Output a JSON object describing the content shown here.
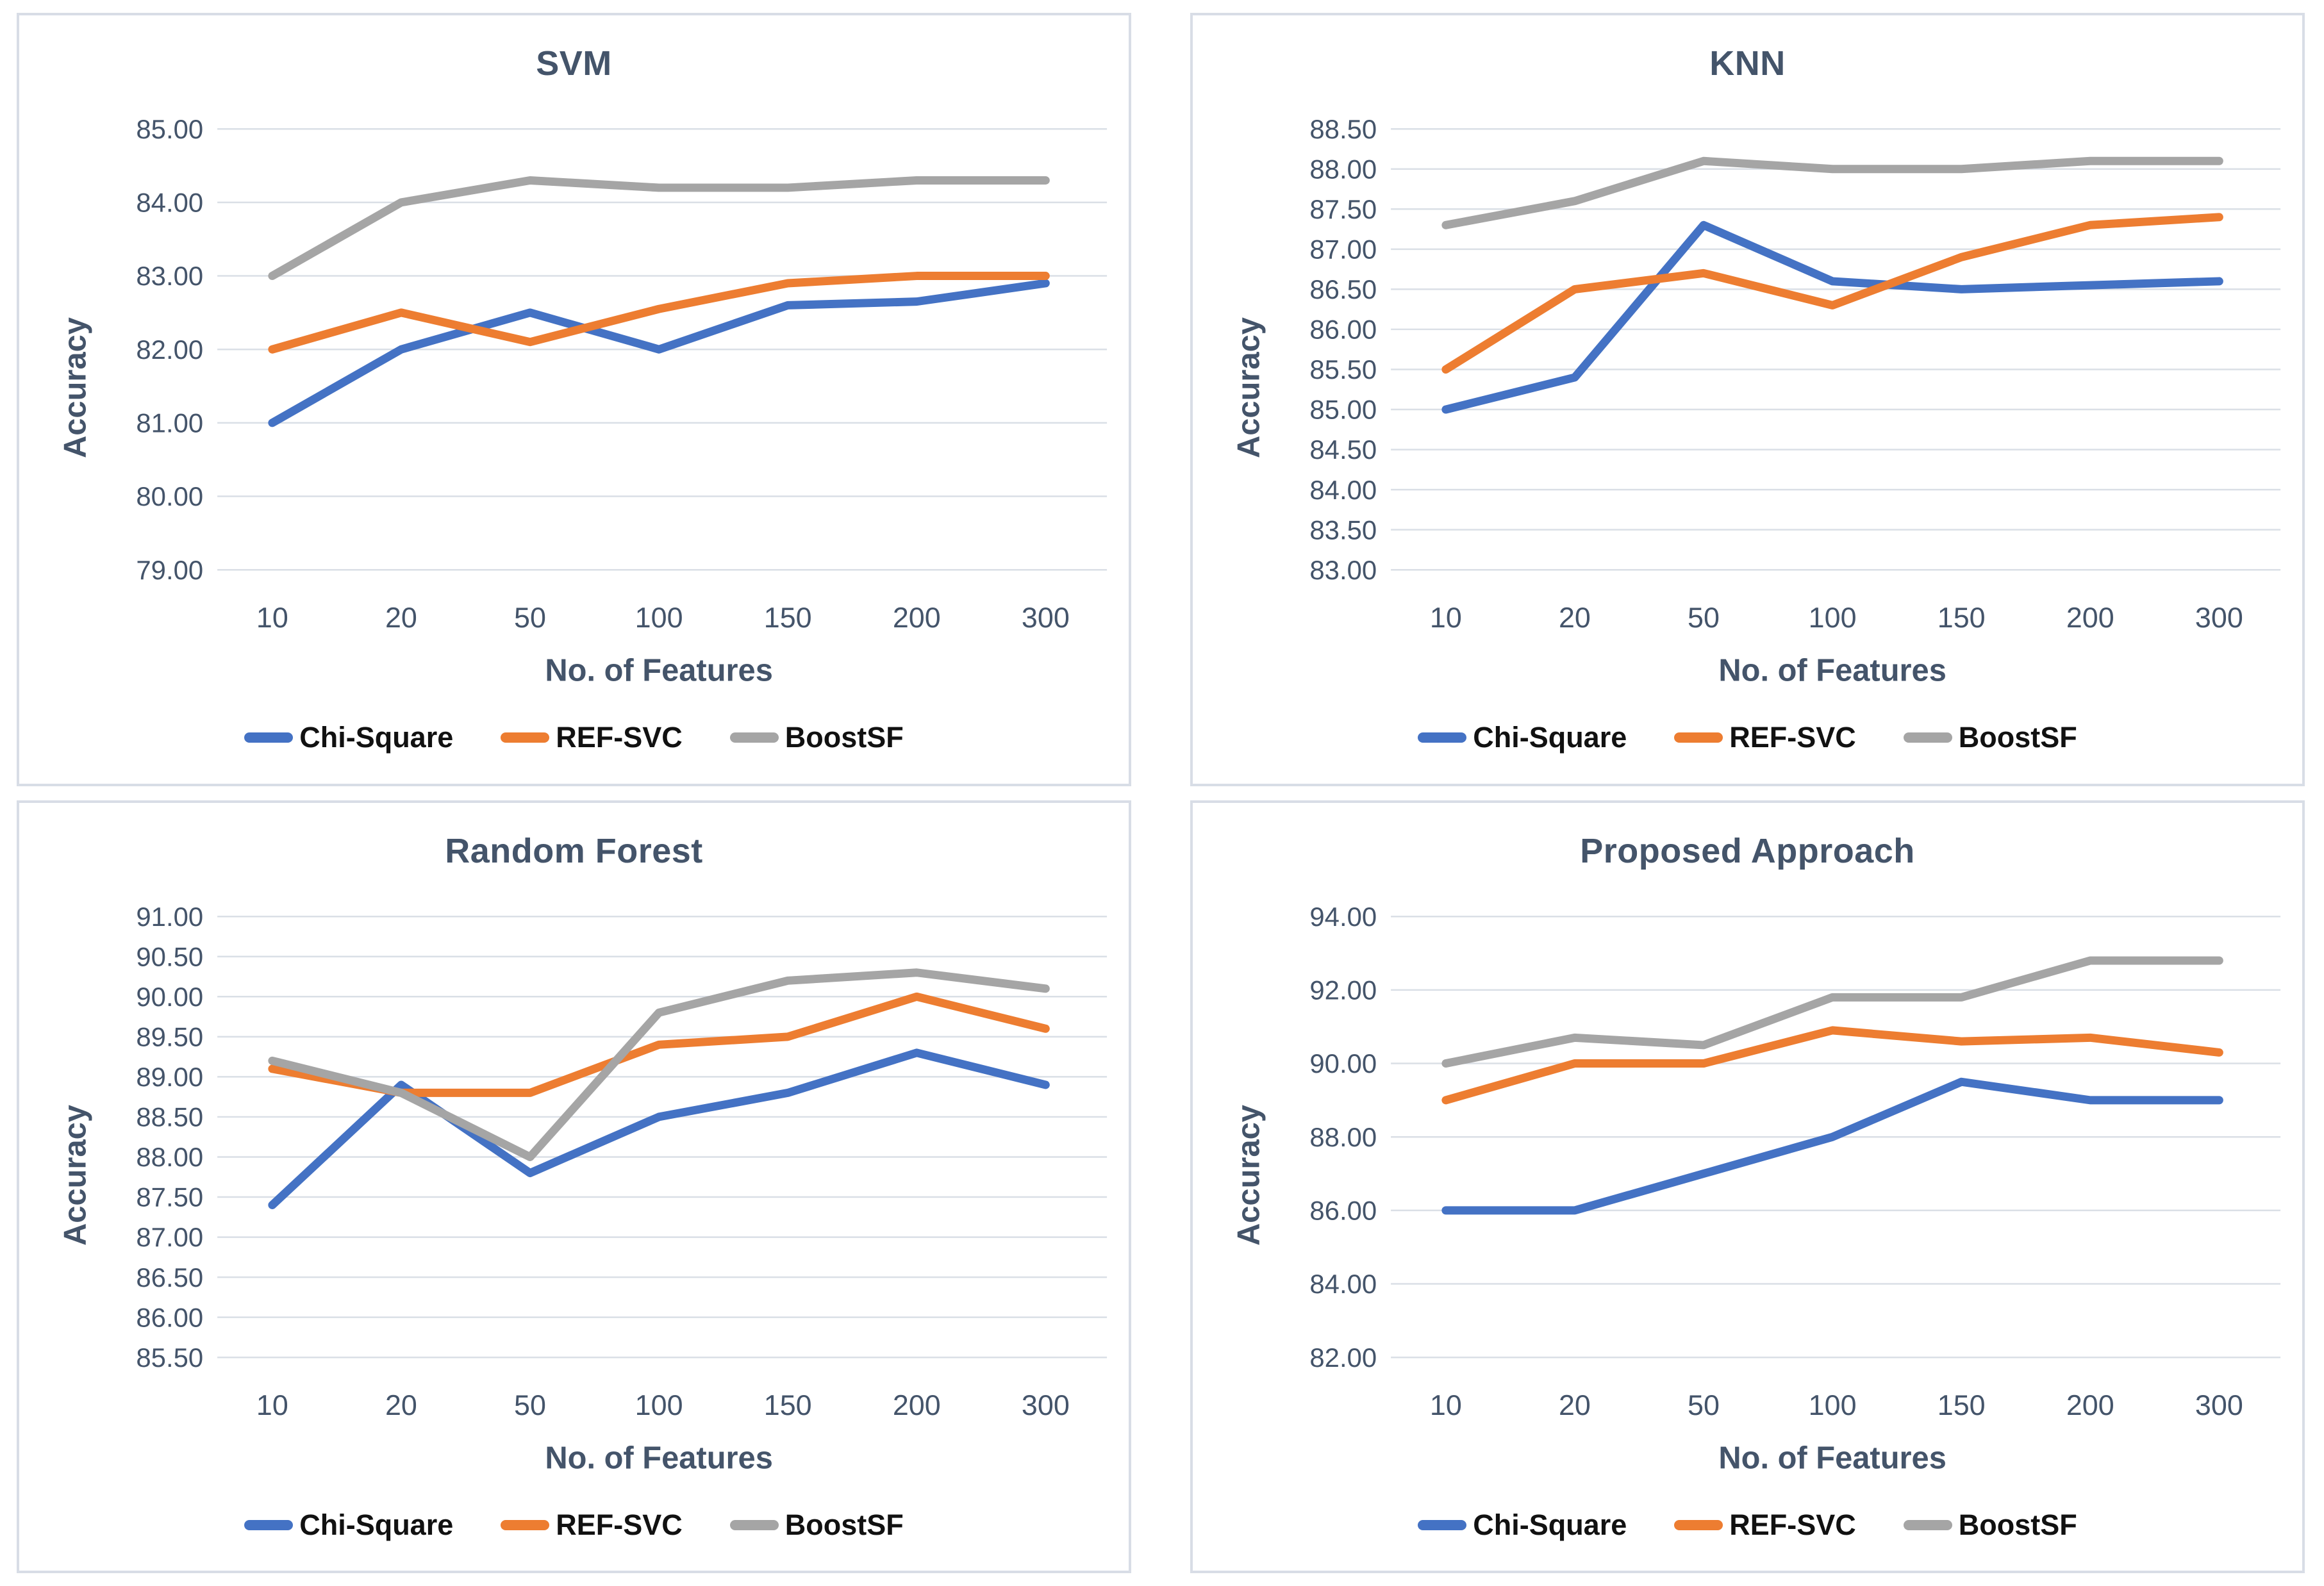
{
  "style": {
    "text_color": "#44546a",
    "tick_color": "#44546a",
    "grid_color": "#dadfe6",
    "panel_border_color": "#d8dde6",
    "legend_text_color": "#111111",
    "series_colors": {
      "chi_square": "#4472C4",
      "ref_svc": "#ED7D31",
      "boostsf": "#A5A5A5"
    }
  },
  "chart_data": [
    {
      "type": "line",
      "title": "SVM",
      "xlabel": "No. of Features",
      "ylabel": "Accuracy",
      "categories": [
        "10",
        "20",
        "50",
        "100",
        "150",
        "200",
        "300"
      ],
      "ylim": [
        79,
        85
      ],
      "ytick_step": 1,
      "grid": true,
      "legend_position": "bottom",
      "series": [
        {
          "name": "Chi-Square",
          "color": "#4472C4",
          "values": [
            81.0,
            82.0,
            82.5,
            82.0,
            82.6,
            82.65,
            82.9
          ]
        },
        {
          "name": "REF-SVC",
          "color": "#ED7D31",
          "values": [
            82.0,
            82.5,
            82.1,
            82.55,
            82.9,
            83.0,
            83.0
          ]
        },
        {
          "name": "BoostSF",
          "color": "#A5A5A5",
          "values": [
            83.0,
            84.0,
            84.3,
            84.2,
            84.2,
            84.3,
            84.3
          ]
        }
      ]
    },
    {
      "type": "line",
      "title": "KNN",
      "xlabel": "No. of Features",
      "ylabel": "Accuracy",
      "categories": [
        "10",
        "20",
        "50",
        "100",
        "150",
        "200",
        "300"
      ],
      "ylim": [
        83,
        88.5
      ],
      "ytick_step": 0.5,
      "grid": true,
      "legend_position": "bottom",
      "series": [
        {
          "name": "Chi-Square",
          "color": "#4472C4",
          "values": [
            85.0,
            85.4,
            87.3,
            86.6,
            86.5,
            86.55,
            86.6
          ]
        },
        {
          "name": "REF-SVC",
          "color": "#ED7D31",
          "values": [
            85.5,
            86.5,
            86.7,
            86.3,
            86.9,
            87.3,
            87.4
          ]
        },
        {
          "name": "BoostSF",
          "color": "#A5A5A5",
          "values": [
            87.3,
            87.6,
            88.1,
            88.0,
            88.0,
            88.1,
            88.1
          ]
        }
      ]
    },
    {
      "type": "line",
      "title": "Random Forest",
      "xlabel": "No. of Features",
      "ylabel": "Accuracy",
      "categories": [
        "10",
        "20",
        "50",
        "100",
        "150",
        "200",
        "300"
      ],
      "ylim": [
        85.5,
        91
      ],
      "ytick_step": 0.5,
      "grid": true,
      "legend_position": "bottom",
      "series": [
        {
          "name": "Chi-Square",
          "color": "#4472C4",
          "values": [
            87.4,
            88.9,
            87.8,
            88.5,
            88.8,
            89.3,
            88.9
          ]
        },
        {
          "name": "REF-SVC",
          "color": "#ED7D31",
          "values": [
            89.1,
            88.8,
            88.8,
            89.4,
            89.5,
            90.0,
            89.6
          ]
        },
        {
          "name": "BoostSF",
          "color": "#A5A5A5",
          "values": [
            89.2,
            88.8,
            88.0,
            89.8,
            90.2,
            90.3,
            90.1
          ]
        }
      ]
    },
    {
      "type": "line",
      "title": "Proposed Approach",
      "xlabel": "No. of Features",
      "ylabel": "Accuracy",
      "categories": [
        "10",
        "20",
        "50",
        "100",
        "150",
        "200",
        "300"
      ],
      "ylim": [
        82,
        94
      ],
      "ytick_step": 2,
      "grid": true,
      "legend_position": "bottom",
      "series": [
        {
          "name": "Chi-Square",
          "color": "#4472C4",
          "values": [
            86.0,
            86.0,
            87.0,
            88.0,
            89.5,
            89.0,
            89.0
          ]
        },
        {
          "name": "REF-SVC",
          "color": "#ED7D31",
          "values": [
            89.0,
            90.0,
            90.0,
            90.9,
            90.6,
            90.7,
            90.3
          ]
        },
        {
          "name": "BoostSF",
          "color": "#A5A5A5",
          "values": [
            90.0,
            90.7,
            90.5,
            91.8,
            91.8,
            92.8,
            92.8
          ]
        }
      ]
    }
  ]
}
